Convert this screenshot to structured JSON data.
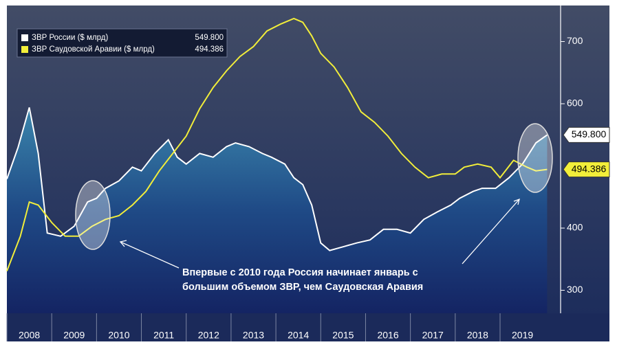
{
  "chart_data": {
    "type": "line",
    "annotation": [
      "Впервые с 2010 года Россия начинает январь с",
      "большим объемом ЗВР, чем Саудовская Аравия"
    ],
    "xlim": [
      2008,
      2020.35
    ],
    "xticks": [
      2008,
      2009,
      2010,
      2011,
      2012,
      2013,
      2014,
      2015,
      2016,
      2017,
      2018,
      2019
    ],
    "ylim": [
      263,
      758
    ],
    "yticks": [
      300,
      400,
      600,
      700
    ],
    "series": [
      {
        "name": "ЗВР России ($ млрд)",
        "color": "#ffffff",
        "end_label": "549.800",
        "x": [
          2008.0,
          2008.25,
          2008.5,
          2008.7,
          2008.9,
          2009.2,
          2009.5,
          2009.8,
          2010.0,
          2010.2,
          2010.5,
          2010.8,
          2011.0,
          2011.3,
          2011.6,
          2011.8,
          2012.0,
          2012.3,
          2012.6,
          2012.9,
          2013.1,
          2013.4,
          2013.7,
          2013.9,
          2014.2,
          2014.4,
          2014.6,
          2014.8,
          2015.0,
          2015.2,
          2015.5,
          2015.8,
          2016.1,
          2016.4,
          2016.7,
          2017.0,
          2017.3,
          2017.6,
          2017.9,
          2018.1,
          2018.4,
          2018.6,
          2018.9,
          2019.2,
          2019.5,
          2019.8,
          2020.05
        ],
        "values": [
          479,
          530,
          594,
          520,
          392,
          387,
          403,
          442,
          448,
          464,
          476,
          498,
          492,
          520,
          542,
          514,
          503,
          520,
          514,
          531,
          537,
          531,
          520,
          514,
          503,
          481,
          470,
          437,
          376,
          364,
          370,
          376,
          381,
          398,
          398,
          392,
          414,
          426,
          437,
          448,
          459,
          464,
          464,
          481,
          503,
          537,
          549.8
        ]
      },
      {
        "name": "ЗВР Саудовской Аравии ($ млрд)",
        "color": "#f2ee3a",
        "end_label": "494.386",
        "x": [
          2008.0,
          2008.3,
          2008.5,
          2008.7,
          2009.0,
          2009.3,
          2009.6,
          2009.9,
          2010.2,
          2010.5,
          2010.8,
          2011.1,
          2011.4,
          2011.7,
          2012.0,
          2012.3,
          2012.6,
          2012.9,
          2013.2,
          2013.5,
          2013.8,
          2014.1,
          2014.4,
          2014.6,
          2014.8,
          2015.0,
          2015.3,
          2015.6,
          2015.9,
          2016.2,
          2016.5,
          2016.8,
          2017.1,
          2017.4,
          2017.7,
          2018.0,
          2018.2,
          2018.5,
          2018.8,
          2019.0,
          2019.3,
          2019.6,
          2019.8,
          2020.05
        ],
        "values": [
          331,
          387,
          442,
          437,
          409,
          387,
          387,
          403,
          414,
          420,
          437,
          459,
          492,
          520,
          548,
          592,
          626,
          653,
          676,
          692,
          717,
          728,
          737,
          731,
          709,
          681,
          659,
          626,
          587,
          570,
          548,
          520,
          498,
          481,
          487,
          487,
          498,
          503,
          498,
          481,
          509,
          498,
          492,
          494.386
        ]
      }
    ]
  }
}
